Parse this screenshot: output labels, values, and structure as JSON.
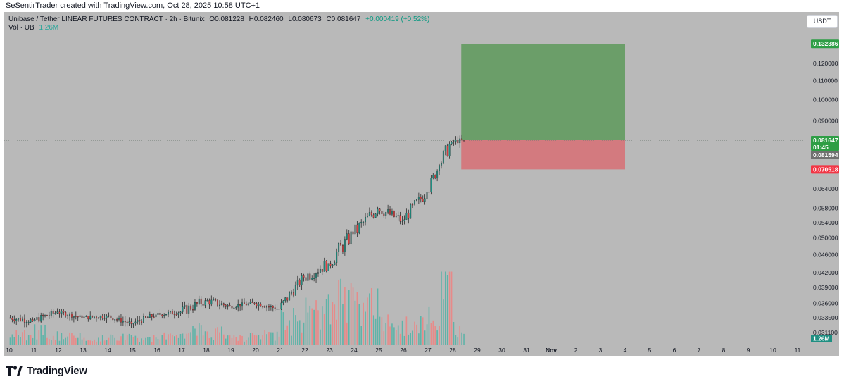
{
  "watermark": "SeSentirTrader created with TradingView.com, Oct 28, 2025 10:58 UTC+1",
  "header": {
    "title": "Unibase / Tether LINEAR FUTURES CONTRACT · 2h · Bitunix",
    "open": "O0.081228",
    "high": "H0.082460",
    "low": "L0.080673",
    "close": "C0.081647",
    "change": "+0.000419 (+0.52%)"
  },
  "volume": {
    "label": "Vol · UB",
    "value": "1.26M"
  },
  "currency_button": "USDT",
  "footer": {
    "brand": "TradingView",
    "logo_icon": "tradingview-logo-icon"
  },
  "colors": {
    "up": "#26a69a",
    "down": "#ef5350",
    "profit_zone": "#6b9e69",
    "loss_zone": "#d37a7f",
    "background": "#b9b9b9"
  },
  "chart_data": {
    "type": "candlestick",
    "interval": "2h",
    "price_axis": {
      "ticks": [
        "0.120000",
        "0.110000",
        "0.100000",
        "0.090000",
        "0.064000",
        "0.058000",
        "0.054000",
        "0.050000",
        "0.046000",
        "0.042000",
        "0.039000",
        "0.036000",
        "0.033500",
        "0.031100"
      ],
      "scale": "log"
    },
    "time_axis": {
      "labels": [
        "10",
        "11",
        "12",
        "13",
        "14",
        "15",
        "16",
        "17",
        "18",
        "19",
        "20",
        "21",
        "22",
        "23",
        "24",
        "25",
        "26",
        "27",
        "28",
        "29",
        "30",
        "31",
        "Nov",
        "2",
        "3",
        "4",
        "5",
        "6",
        "7",
        "8",
        "9",
        "10",
        "11"
      ]
    },
    "last_price": "0.081647",
    "countdown": "01:45",
    "prev_price": "0.081594",
    "position": {
      "type": "long",
      "take_profit": "0.132386",
      "entry": 0.081647,
      "stop_loss": "0.070518",
      "start_day": 28.35,
      "end_day": 4.0
    },
    "daily_ohlc": [
      {
        "day": 10,
        "open": 0.0335,
        "high": 0.0352,
        "low": 0.0318,
        "close": 0.033
      },
      {
        "day": 11,
        "open": 0.033,
        "high": 0.0362,
        "low": 0.032,
        "close": 0.0345
      },
      {
        "day": 12,
        "open": 0.0345,
        "high": 0.035,
        "low": 0.0325,
        "close": 0.0335
      },
      {
        "day": 13,
        "open": 0.0335,
        "high": 0.0348,
        "low": 0.0322,
        "close": 0.0338
      },
      {
        "day": 14,
        "open": 0.0338,
        "high": 0.0345,
        "low": 0.0318,
        "close": 0.0325
      },
      {
        "day": 15,
        "open": 0.0325,
        "high": 0.0352,
        "low": 0.0318,
        "close": 0.034
      },
      {
        "day": 16,
        "open": 0.034,
        "high": 0.0358,
        "low": 0.0328,
        "close": 0.0345
      },
      {
        "day": 17,
        "open": 0.0345,
        "high": 0.04,
        "low": 0.0335,
        "close": 0.0365
      },
      {
        "day": 18,
        "open": 0.0365,
        "high": 0.039,
        "low": 0.034,
        "close": 0.0355
      },
      {
        "day": 19,
        "open": 0.0355,
        "high": 0.0372,
        "low": 0.0345,
        "close": 0.036
      },
      {
        "day": 20,
        "open": 0.036,
        "high": 0.0365,
        "low": 0.0338,
        "close": 0.035
      },
      {
        "day": 21,
        "open": 0.035,
        "high": 0.042,
        "low": 0.0345,
        "close": 0.041
      },
      {
        "day": 22,
        "open": 0.041,
        "high": 0.049,
        "low": 0.039,
        "close": 0.044
      },
      {
        "day": 23,
        "open": 0.044,
        "high": 0.054,
        "low": 0.04,
        "close": 0.051
      },
      {
        "day": 24,
        "open": 0.051,
        "high": 0.064,
        "low": 0.0495,
        "close": 0.058
      },
      {
        "day": 25,
        "open": 0.058,
        "high": 0.0595,
        "low": 0.048,
        "close": 0.0545
      },
      {
        "day": 26,
        "open": 0.0545,
        "high": 0.0665,
        "low": 0.053,
        "close": 0.063
      },
      {
        "day": 27,
        "open": 0.063,
        "high": 0.076,
        "low": 0.0615,
        "close": 0.072
      },
      {
        "day": 27.5,
        "open": 0.072,
        "high": 0.092,
        "low": 0.07,
        "close": 0.081
      },
      {
        "day": 28,
        "open": 0.081,
        "high": 0.084,
        "low": 0.077,
        "close": 0.0816
      }
    ],
    "daily_volume": [
      {
        "day": 10,
        "value": 0.2
      },
      {
        "day": 11,
        "value": 0.25
      },
      {
        "day": 12,
        "value": 0.15
      },
      {
        "day": 13,
        "value": 0.12
      },
      {
        "day": 14,
        "value": 0.14
      },
      {
        "day": 15,
        "value": 0.12
      },
      {
        "day": 16,
        "value": 0.15
      },
      {
        "day": 17,
        "value": 0.3
      },
      {
        "day": 18,
        "value": 0.22
      },
      {
        "day": 19,
        "value": 0.15
      },
      {
        "day": 20,
        "value": 0.18
      },
      {
        "day": 21,
        "value": 0.45
      },
      {
        "day": 22,
        "value": 0.65
      },
      {
        "day": 23,
        "value": 0.85
      },
      {
        "day": 24,
        "value": 0.7
      },
      {
        "day": 25,
        "value": 0.45
      },
      {
        "day": 26,
        "value": 0.4
      },
      {
        "day": 27,
        "value": 0.55
      },
      {
        "day": 27.5,
        "value": 1.1
      },
      {
        "day": 28,
        "value": 0.3
      }
    ]
  }
}
